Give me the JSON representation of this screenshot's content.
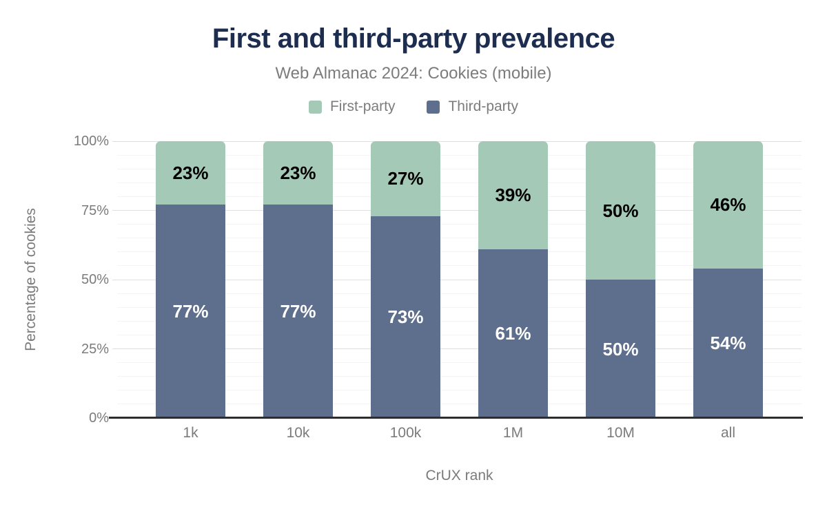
{
  "chart_data": {
    "type": "bar",
    "stacked": true,
    "title": "First and third-party prevalence",
    "subtitle": "Web Almanac 2024: Cookies (mobile)",
    "categories": [
      "1k",
      "10k",
      "100k",
      "1M",
      "10M",
      "all"
    ],
    "series": [
      {
        "name": "First-party",
        "color": "#a5c9b7",
        "label_color": "#000000",
        "values": [
          23,
          23,
          27,
          39,
          50,
          46
        ]
      },
      {
        "name": "Third-party",
        "color": "#5d6f8c",
        "label_color": "#ffffff",
        "values": [
          77,
          77,
          73,
          61,
          50,
          54
        ]
      }
    ],
    "xlabel": "CrUX rank",
    "ylabel": "Percentage of cookies",
    "ylim": [
      0,
      100
    ],
    "yticks": [
      {
        "value": 0,
        "label": "0%"
      },
      {
        "value": 25,
        "label": "25%"
      },
      {
        "value": 50,
        "label": "50%"
      },
      {
        "value": 75,
        "label": "75%"
      },
      {
        "value": 100,
        "label": "100%"
      }
    ],
    "grid": {
      "minor_step": 5,
      "major_step": 25,
      "vertical": false
    },
    "legend_position": "top",
    "unit_suffix": "%",
    "colors": {
      "title": "#1d2d50",
      "muted_text": "#7b7b7b",
      "axis_line": "#2d2d2d",
      "major_gridline": "#e0e0e0",
      "minor_gridline": "#f4f4f4",
      "background": "#ffffff"
    }
  }
}
